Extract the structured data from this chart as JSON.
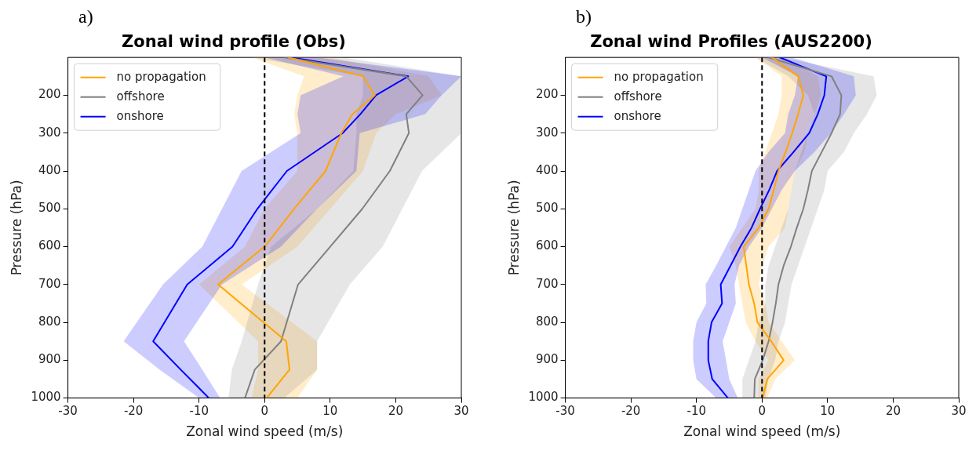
{
  "chart_data": [
    {
      "type": "line",
      "title": "Zonal wind profile (Obs)",
      "xlabel": "Zonal wind speed (m/s)",
      "ylabel": "Pressure (hPa)",
      "annotations": [
        "a)"
      ],
      "orientation": "horizontal",
      "xlim": [
        -30,
        30
      ],
      "xticks": [
        -30,
        -20,
        -10,
        0,
        10,
        20,
        30
      ],
      "ylim": [
        1000,
        100
      ],
      "yticks": [
        200,
        300,
        400,
        500,
        600,
        700,
        800,
        900,
        1000
      ],
      "legend": "top left",
      "x": [
        100,
        150,
        200,
        250,
        300,
        400,
        500,
        600,
        700,
        850,
        925,
        1000
      ],
      "series": [
        {
          "name": "no propagation",
          "color": "#ffa500",
          "values": [
            3.6,
            15,
            16.8,
            13.4,
            11.7,
            9.3,
            4.5,
            0,
            -7.1,
            3.3,
            3.8,
            0.3
          ],
          "lower": [
            -2,
            6,
            5,
            4.5,
            5,
            5,
            0,
            -3,
            -10,
            -1,
            -1,
            -2
          ],
          "upper": [
            10,
            25,
            27,
            20,
            17,
            15,
            10,
            5,
            -3.5,
            8,
            8,
            5
          ]
        },
        {
          "name": "offshore",
          "color": "#808080",
          "values": [
            3,
            21.6,
            24.1,
            21.6,
            22,
            19.1,
            14.9,
            10,
            5.1,
            2.5,
            -1.5,
            -3
          ],
          "lower": [
            -2,
            15,
            15,
            14,
            14,
            13.5,
            8,
            1,
            -1,
            -3.5,
            -5,
            -5.5
          ],
          "upper": [
            12,
            30,
            30,
            30,
            30,
            24,
            21,
            18,
            13,
            8,
            8,
            3
          ]
        },
        {
          "name": "onshore",
          "color": "#0000ff",
          "values": [
            4,
            21.9,
            17,
            14.6,
            11.9,
            3.4,
            -1.1,
            -4.9,
            -11.8,
            -17,
            -12.8,
            -8.5
          ],
          "lower": [
            0,
            12,
            5.5,
            5,
            5.5,
            -3.5,
            -6.5,
            -9.5,
            -15.5,
            -21.5,
            -16,
            -10
          ],
          "upper": [
            8,
            30,
            27,
            24.5,
            14.5,
            14,
            8,
            2.5,
            -6.5,
            -12.3,
            -9.5,
            -6.8
          ]
        }
      ],
      "ref_lines": [
        {
          "axis": "x",
          "value": 0,
          "color": "#000000",
          "line_style": "dashed"
        }
      ]
    },
    {
      "type": "line",
      "title": "Zonal wind Profiles (AUS2200)",
      "xlabel": "Zonal wind speed (m/s)",
      "ylabel": "Pressure (hPa)",
      "annotations": [
        "b)"
      ],
      "orientation": "horizontal",
      "xlim": [
        -30,
        30
      ],
      "xticks": [
        -30,
        -20,
        -10,
        0,
        10,
        20,
        30
      ],
      "ylim": [
        1000,
        100
      ],
      "yticks": [
        200,
        300,
        400,
        500,
        600,
        700,
        800,
        900,
        1000
      ],
      "legend": "top left",
      "x": [
        100,
        150,
        200,
        250,
        300,
        350,
        400,
        450,
        500,
        550,
        600,
        650,
        700,
        750,
        800,
        850,
        900,
        950,
        1000
      ],
      "series": [
        {
          "name": "no propagation",
          "color": "#ffa500",
          "values": [
            1.5,
            5.5,
            6.3,
            5.5,
            4.6,
            3.6,
            2.5,
            1.8,
            1,
            -0.5,
            -2.8,
            -2.4,
            -2,
            -1.2,
            -0.7,
            1.4,
            3.3,
            0.8,
            0.1
          ],
          "lower": [
            -1,
            3,
            3,
            2.5,
            1.5,
            0.5,
            -0.5,
            -0.5,
            -1,
            -3,
            -5,
            -4,
            -3.5,
            -3,
            -2.5,
            -1,
            1,
            -0.5,
            -0.5
          ],
          "upper": [
            3,
            8.5,
            9,
            8,
            7,
            6.5,
            5,
            4.5,
            4,
            3.5,
            1,
            0,
            -0.5,
            0.5,
            1,
            3,
            5,
            2,
            0.8
          ]
        },
        {
          "name": "offshore",
          "color": "#808080",
          "values": [
            1,
            10.6,
            12.1,
            11.9,
            10.6,
            9.1,
            7.6,
            7,
            6.3,
            5.3,
            4.4,
            3.3,
            2.5,
            2.1,
            1.6,
            1,
            0.1,
            -1.1,
            -1.2
          ],
          "lower": [
            -1,
            4,
            7,
            8,
            7,
            6,
            5,
            4.5,
            4,
            3,
            2,
            1,
            0.5,
            0.5,
            -0.5,
            -1,
            -2,
            -3,
            -3
          ],
          "upper": [
            3,
            17,
            17.5,
            16,
            14,
            12.5,
            10,
            9.5,
            8.5,
            7.5,
            6.5,
            5.5,
            4.5,
            4,
            3.5,
            2.5,
            2,
            1,
            0.5
          ]
        },
        {
          "name": "onshore",
          "color": "#0000ff",
          "values": [
            2.7,
            9.8,
            9.5,
            8.5,
            7.2,
            4.8,
            2.3,
            1.1,
            -0.3,
            -1.6,
            -3.3,
            -4.8,
            -6.3,
            -6.1,
            -7.7,
            -8.2,
            -8.2,
            -7.6,
            -5.2
          ],
          "lower": [
            0,
            5.5,
            5,
            4,
            3.5,
            1,
            -1,
            -2,
            -3,
            -4,
            -5.5,
            -7,
            -8.6,
            -8.5,
            -10,
            -10.5,
            -10.5,
            -10,
            -7
          ],
          "upper": [
            4.5,
            14,
            14.3,
            12.5,
            10.5,
            8,
            5,
            3,
            1.5,
            0,
            -2,
            -3.5,
            -4.2,
            -4,
            -5,
            -6,
            -5.5,
            -5,
            -3.7
          ]
        }
      ],
      "ref_lines": [
        {
          "axis": "x",
          "value": 0,
          "color": "#000000",
          "line_style": "dashed"
        }
      ]
    }
  ]
}
